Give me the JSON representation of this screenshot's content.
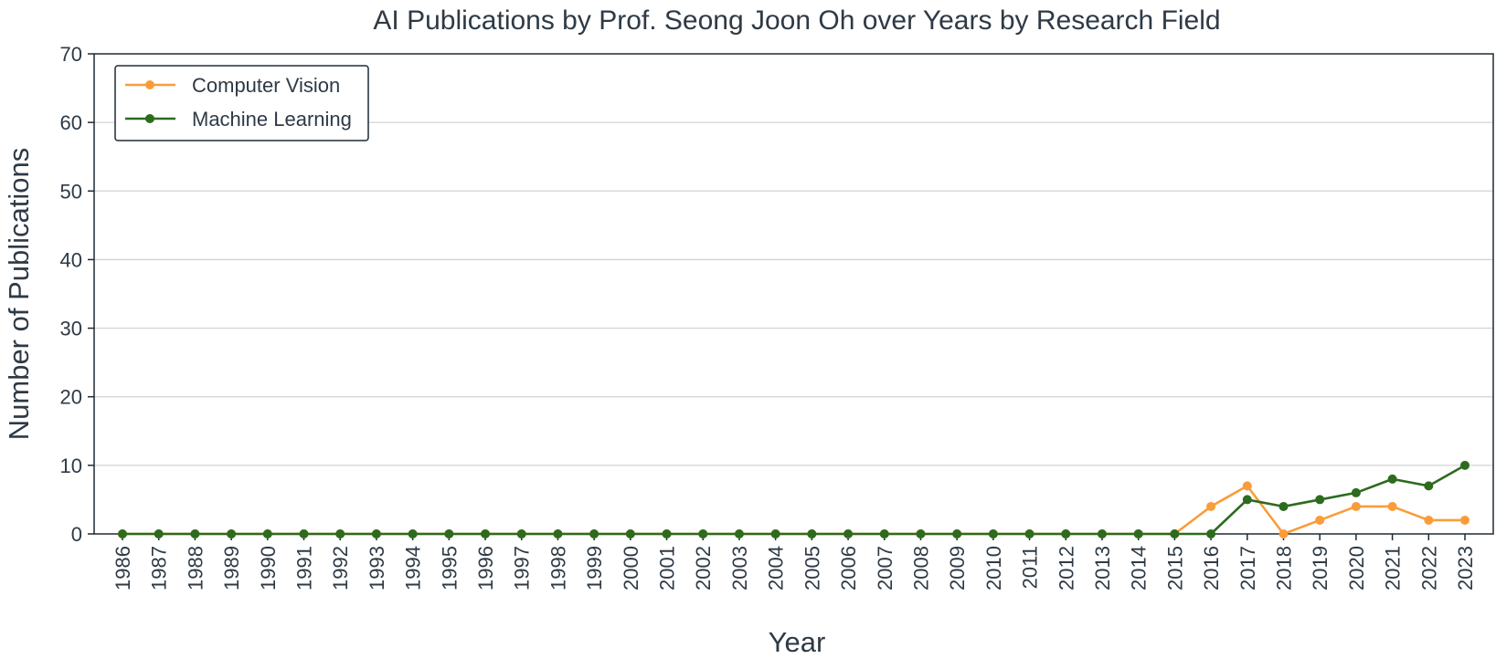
{
  "chart_data": {
    "type": "line",
    "title": "AI Publications by Prof. Seong Joon Oh over Years by Research Field",
    "xlabel": "Year",
    "ylabel": "Number of Publications",
    "ylim": [
      0,
      70
    ],
    "yticks": [
      0,
      10,
      20,
      30,
      40,
      50,
      60,
      70
    ],
    "grid": "horizontal",
    "legend_position": "top-left",
    "x": [
      1986,
      1987,
      1988,
      1989,
      1990,
      1991,
      1992,
      1993,
      1994,
      1995,
      1996,
      1997,
      1998,
      1999,
      2000,
      2001,
      2002,
      2003,
      2004,
      2005,
      2006,
      2007,
      2008,
      2009,
      2010,
      2011,
      2012,
      2013,
      2014,
      2015,
      2016,
      2017,
      2018,
      2019,
      2020,
      2021,
      2022,
      2023
    ],
    "series": [
      {
        "name": "Computer Vision",
        "color": "#f99d3a",
        "values": [
          0,
          0,
          0,
          0,
          0,
          0,
          0,
          0,
          0,
          0,
          0,
          0,
          0,
          0,
          0,
          0,
          0,
          0,
          0,
          0,
          0,
          0,
          0,
          0,
          0,
          0,
          0,
          0,
          0,
          0,
          4,
          7,
          0,
          2,
          4,
          4,
          2,
          2
        ]
      },
      {
        "name": "Machine Learning",
        "color": "#2d6b1e",
        "values": [
          0,
          0,
          0,
          0,
          0,
          0,
          0,
          0,
          0,
          0,
          0,
          0,
          0,
          0,
          0,
          0,
          0,
          0,
          0,
          0,
          0,
          0,
          0,
          0,
          0,
          0,
          0,
          0,
          0,
          0,
          0,
          5,
          4,
          5,
          6,
          8,
          7,
          10
        ]
      }
    ]
  }
}
